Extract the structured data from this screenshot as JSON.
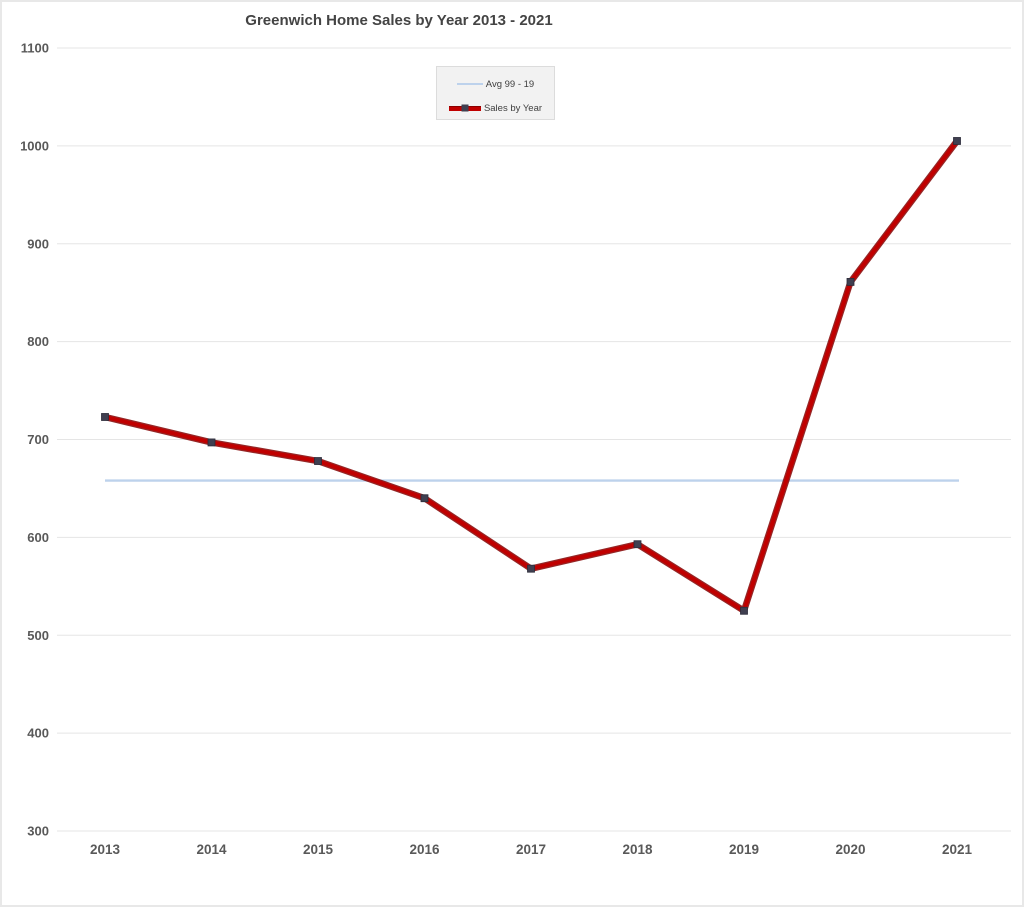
{
  "chart_data": {
    "type": "line",
    "title": "Greenwich Home Sales by Year 2013 - 2021",
    "categories": [
      "2013",
      "2014",
      "2015",
      "2016",
      "2017",
      "2018",
      "2019",
      "2020",
      "2021"
    ],
    "series": [
      {
        "name": "Avg 99 - 19",
        "kind": "reference-line",
        "value": 658,
        "color": "#bdd2ec"
      },
      {
        "name": "Sales by Year",
        "kind": "line-with-markers",
        "values": [
          723,
          697,
          678,
          640,
          568,
          593,
          525,
          861,
          1005
        ],
        "color": "#c00000",
        "edge_color": "#820000",
        "marker_color": "#3f3f50",
        "marker_shape": "square"
      }
    ],
    "xlabel": "",
    "ylabel": "",
    "ylim": [
      300,
      1100
    ],
    "ytick_step": 100,
    "yticks": [
      300,
      400,
      500,
      600,
      700,
      800,
      900,
      1000,
      1100
    ],
    "grid": true,
    "gridline_color": "#e5e5e5",
    "legend_position": "top-center",
    "axis_text_color": "#595959",
    "title_color": "#444444",
    "background_color": "#ffffff",
    "frame_border_color": "#e8e8e8",
    "legend_bg_color": "#f2f2f2",
    "legend_border_color": "#dcdcdc"
  }
}
